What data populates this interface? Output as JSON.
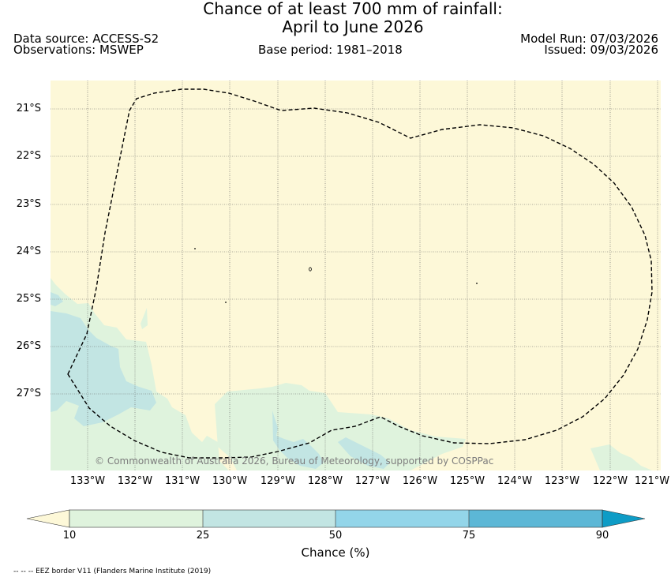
{
  "title": {
    "line1": "Chance of at least 700 mm of rainfall:",
    "line2": "April to June 2026"
  },
  "header": {
    "data_source": "Data source: ACCESS-S2",
    "observations": "Observations: MSWEP",
    "base_period": "Base period: 1981–2018",
    "model_run": "Model Run: 07/03/2026",
    "issued": "Issued: 09/03/2026"
  },
  "map": {
    "latitude_labels": [
      "21°S",
      "22°S",
      "23°S",
      "24°S",
      "25°S",
      "26°S",
      "27°S"
    ],
    "longitude_labels": [
      "133°W",
      "132°W",
      "131°W",
      "130°W",
      "129°W",
      "128°W",
      "127°W",
      "126°W",
      "125°W",
      "124°W",
      "123°W",
      "122°W",
      "121°W"
    ],
    "copyright": "© Commonwealth of Australia 2026, Bureau of Meteorology, supported by COSPPac",
    "background_color": "#fdf8d8",
    "eez_line": "dashed black"
  },
  "colorbar": {
    "ticks": [
      "10",
      "25",
      "50",
      "75",
      "90"
    ],
    "label": "Chance (%)",
    "colors": [
      "#fdf8d8",
      "#dff3dd",
      "#c2e5e3",
      "#93d5e9",
      "#5cb7d6",
      "#0e9cc6"
    ],
    "bins": [
      "<10",
      "10–25",
      "25–50",
      "50–75",
      "75–90",
      ">90"
    ]
  },
  "footnote": "-- -- -- EEZ border V11 (Flanders Marine Institute (2019)"
}
